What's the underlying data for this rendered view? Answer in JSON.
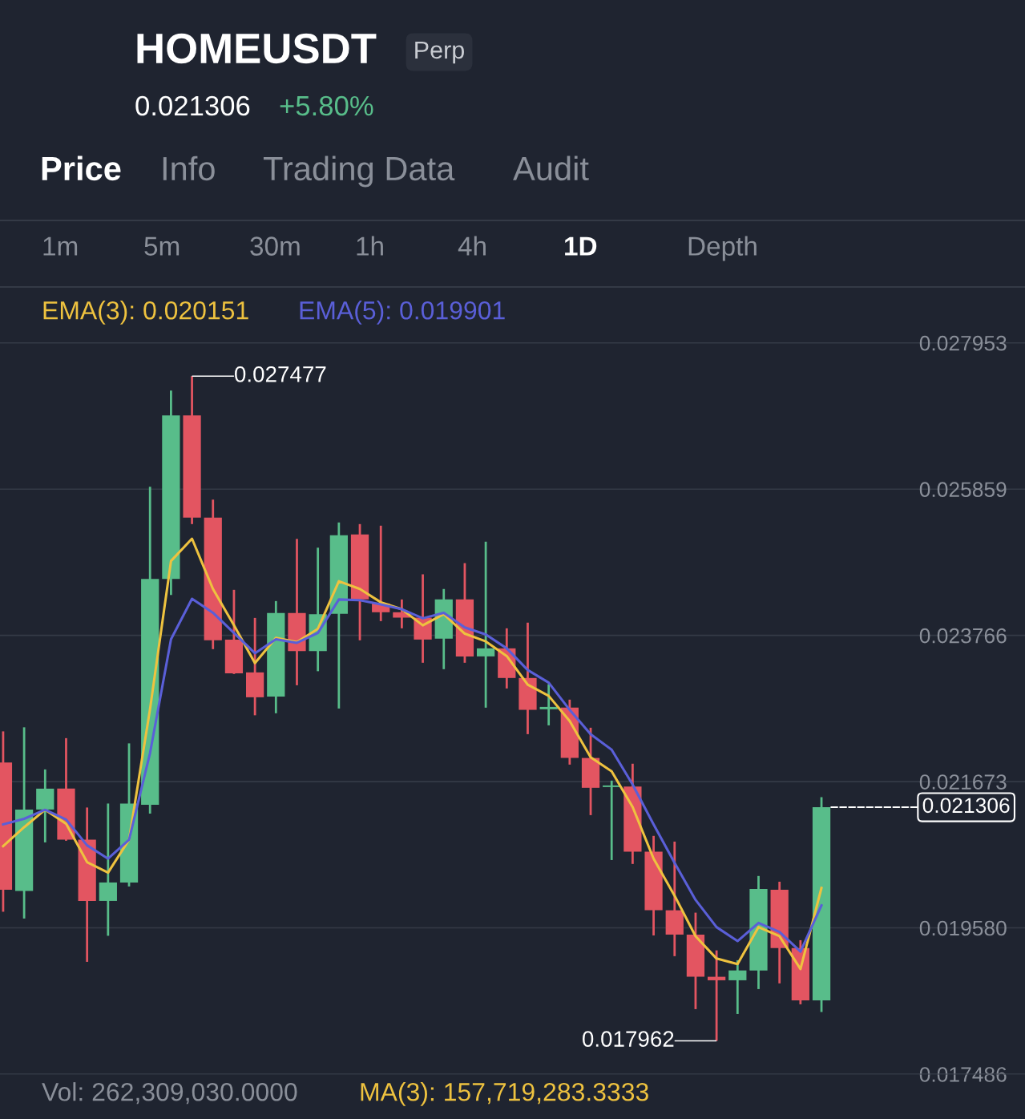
{
  "chart_data": {
    "type": "candlestick",
    "title": "HOMEUSDT",
    "subtitle": "Perp",
    "categories": [
      null,
      null,
      null,
      null,
      null,
      null,
      null,
      null,
      null,
      null,
      null,
      null,
      null,
      null,
      null,
      null,
      null,
      null,
      null,
      null,
      null,
      null,
      null,
      null,
      null,
      null,
      null,
      null,
      null,
      null,
      null,
      null,
      null,
      null,
      null,
      null,
      null,
      null,
      null,
      null
    ],
    "ohlc": [
      [
        0.021945,
        0.022392,
        0.01981,
        0.020126
      ],
      [
        0.020109,
        0.02245,
        0.019713,
        0.021273
      ],
      [
        0.021273,
        0.021847,
        0.020803,
        0.021572
      ],
      [
        0.021572,
        0.022295,
        0.020826,
        0.020843
      ],
      [
        0.020843,
        0.021302,
        0.019093,
        0.019965
      ],
      [
        0.019965,
        0.021359,
        0.019466,
        0.020229
      ],
      [
        0.020229,
        0.02222,
        0.020172,
        0.021359
      ],
      [
        0.021342,
        0.025893,
        0.021216,
        0.024573
      ],
      [
        0.024573,
        0.02727,
        0.024344,
        0.026914
      ],
      [
        0.026914,
        0.027477,
        0.025359,
        0.025451
      ],
      [
        0.025451,
        0.025709,
        0.023569,
        0.023695
      ],
      [
        0.023706,
        0.024418,
        0.023213,
        0.023224
      ],
      [
        0.023236,
        0.024016,
        0.022622,
        0.02288
      ],
      [
        0.022891,
        0.024257,
        0.022651,
        0.024085
      ],
      [
        0.024085,
        0.025147,
        0.023052,
        0.02354
      ],
      [
        0.02354,
        0.025021,
        0.023253,
        0.024068
      ],
      [
        0.024074,
        0.025382,
        0.022719,
        0.025199
      ],
      [
        0.02521,
        0.025359,
        0.023695,
        0.02428
      ],
      [
        0.024223,
        0.025336,
        0.02397,
        0.024097
      ],
      [
        0.024097,
        0.02428,
        0.023867,
        0.02402
      ],
      [
        0.02402,
        0.02464,
        0.023374,
        0.023706
      ],
      [
        0.023718,
        0.02443,
        0.023282,
        0.02428
      ],
      [
        0.02428,
        0.0248,
        0.023374,
        0.023465
      ],
      [
        0.023465,
        0.025107,
        0.022731,
        0.02358
      ],
      [
        0.02358,
        0.023867,
        0.023006,
        0.023156
      ],
      [
        0.023156,
        0.023948,
        0.022352,
        0.0227
      ],
      [
        0.022708,
        0.023068,
        0.022478,
        0.022742
      ],
      [
        0.022732,
        0.022846,
        0.021916,
        0.022011
      ],
      [
        0.022011,
        0.022444,
        0.021193,
        0.021584
      ],
      [
        0.021595,
        0.021687,
        0.02055,
        0.021618
      ],
      [
        0.021602,
        0.021929,
        0.020494,
        0.020671
      ],
      [
        0.020671,
        0.020896,
        0.019471,
        0.019831
      ],
      [
        0.019831,
        0.020814,
        0.019174,
        0.019483
      ],
      [
        0.019483,
        0.019797,
        0.018416,
        0.018879
      ],
      [
        0.018879,
        0.019257,
        0.017962,
        0.018829
      ],
      [
        0.018829,
        0.019116,
        0.018347,
        0.01897
      ],
      [
        0.01897,
        0.020322,
        0.018703,
        0.020137
      ],
      [
        0.020126,
        0.02024,
        0.018785,
        0.019289
      ],
      [
        0.019289,
        0.019403,
        0.018485,
        0.018542
      ],
      [
        0.018542,
        0.02145,
        0.018376,
        0.021306
      ]
    ],
    "colors": [
      "#e35561",
      "#58bd8a",
      "#58bd8a",
      "#e35561",
      "#e35561",
      "#58bd8a",
      "#58bd8a",
      "#58bd8a",
      "#58bd8a",
      "#e35561",
      "#e35561",
      "#e35561",
      "#e35561",
      "#58bd8a",
      "#e35561",
      "#58bd8a",
      "#58bd8a",
      "#e35561",
      "#e35561",
      "#e35561",
      "#e35561",
      "#58bd8a",
      "#e35561",
      "#58bd8a",
      "#e35561",
      "#e35561",
      "#58bd8a",
      "#e35561",
      "#e35561",
      "#58bd8a",
      "#e35561",
      "#e35561",
      "#e35561",
      "#e35561",
      "#e35561",
      "#58bd8a",
      "#58bd8a",
      "#e35561",
      "#e35561",
      "#58bd8a"
    ],
    "series": [
      {
        "type": "line",
        "name": "EMA(3): 0.020151",
        "color": "#eec23f",
        "values": [
          0.02075,
          0.02102,
          0.02127,
          0.02107,
          0.02052,
          0.02037,
          0.02084,
          0.02271,
          0.02483,
          0.02515,
          0.02443,
          0.02391,
          0.02337,
          0.02373,
          0.02367,
          0.02386,
          0.02454,
          0.02443,
          0.02424,
          0.02414,
          0.02391,
          0.02407,
          0.02379,
          0.02368,
          0.02347,
          0.02306,
          0.0229,
          0.02254,
          0.02202,
          0.02182,
          0.02131,
          0.02057,
          0.02004,
          0.01946,
          0.01914,
          0.01906,
          0.01959,
          0.01946,
          0.01899,
          0.020151
        ]
      },
      {
        "type": "line",
        "name": "EMA(5): 0.019901",
        "color": "#5a5fd8",
        "values": [
          0.02106,
          0.02114,
          0.02127,
          0.02113,
          0.02076,
          0.02057,
          0.02084,
          0.02208,
          0.02371,
          0.02429,
          0.02409,
          0.0238,
          0.02351,
          0.02371,
          0.02366,
          0.0238,
          0.02428,
          0.02427,
          0.02421,
          0.02414,
          0.02401,
          0.02409,
          0.02388,
          0.02378,
          0.02358,
          0.02327,
          0.02309,
          0.0227,
          0.02235,
          0.02213,
          0.02163,
          0.02106,
          0.02051,
          0.01998,
          0.01959,
          0.01939,
          0.01965,
          0.01952,
          0.01924,
          0.019901
        ]
      }
    ],
    "ylim": [
      0.017486,
      0.02873
    ],
    "yticks": [
      0.017486,
      {
        "value": 0.01958,
        "label": "0.019580"
      },
      0.021673,
      0.023766,
      0.025859,
      0.027953
    ],
    "grid": "y",
    "annotations": [
      "0.021306",
      "+5.80%",
      "Price",
      "Info",
      "Trading Data",
      "Audit",
      "1m",
      "5m",
      "30m",
      "1h",
      "4h",
      "1D",
      "Depth",
      "Vol: 262,309,030.0000",
      "MA(3): 157,719,283.3333",
      "0.027477",
      "0.017962",
      "0.021306"
    ]
  }
}
